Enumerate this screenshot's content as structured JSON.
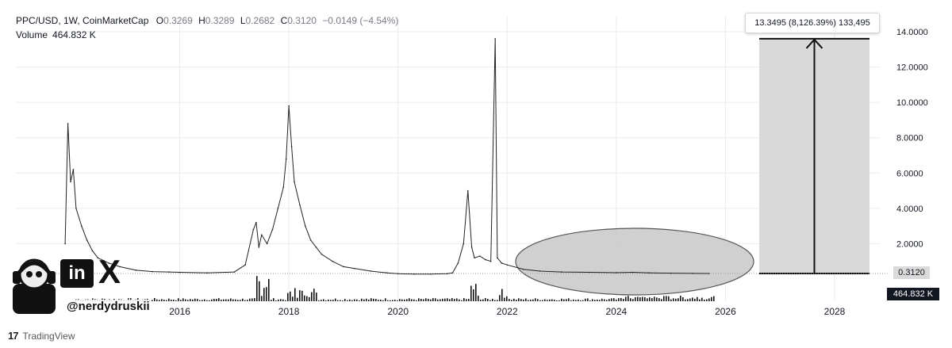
{
  "header": {
    "symbol_line": "PPC/USD, 1W, CoinMarketCap",
    "open_key": "O",
    "open": "0.3269",
    "high_key": "H",
    "high": "0.3289",
    "low_key": "L",
    "low": "0.2682",
    "close_key": "C",
    "close": "0.3120",
    "change": "−0.0149 (−4.54%)",
    "volume_label": "Volume",
    "volume_value": "464.832 K"
  },
  "price_tag": "0.3120",
  "volume_tag": "464.832 K",
  "measure": {
    "label": "13.3495 (8,126.39%) 133,495",
    "from": 0.312,
    "to": 13.6
  },
  "watermark": {
    "handle": "@nerdydruskii",
    "linkedin_text": "in",
    "x_text": "X"
  },
  "footer": {
    "logo": "17",
    "brand": "TradingView"
  },
  "colors": {
    "price_line": "#222222",
    "volume": "#111111",
    "measure_fill": "#d9d9d9",
    "ellipse_fill": "#c8c8c8",
    "grid": "#ebebeb"
  },
  "chart_data": {
    "type": "line",
    "title": "PPC/USD, 1W, CoinMarketCap",
    "x_ticks": [
      "2016",
      "2018",
      "2020",
      "2022",
      "2024",
      "2026",
      "2028"
    ],
    "y_ticks": [
      "2.0000",
      "4.0000",
      "6.0000",
      "8.0000",
      "10.0000",
      "12.0000",
      "14.0000"
    ],
    "ylim": [
      0,
      14
    ],
    "xlim": [
      2013.8,
      2029.5
    ],
    "series": [
      {
        "x": [
          2013.9,
          2013.95,
          2014.0,
          2014.05,
          2014.1,
          2014.2,
          2014.3,
          2014.4,
          2014.5,
          2014.7,
          2014.9,
          2015.2,
          2015.5,
          2015.8,
          2016.0,
          2016.5,
          2017.0,
          2017.2,
          2017.35,
          2017.4,
          2017.45,
          2017.5,
          2017.6,
          2017.7,
          2017.8,
          2017.9,
          2017.95,
          2018.0,
          2018.05,
          2018.1,
          2018.2,
          2018.3,
          2018.4,
          2018.5,
          2018.6,
          2018.8,
          2019.0,
          2019.2,
          2019.5,
          2019.8,
          2020.0,
          2020.3,
          2020.6,
          2020.9,
          2021.0,
          2021.1,
          2021.2,
          2021.28,
          2021.35,
          2021.4,
          2021.5,
          2021.6,
          2021.7,
          2021.78,
          2021.82,
          2021.9,
          2022.0,
          2022.3,
          2022.6,
          2023.0,
          2023.5,
          2024.0,
          2024.3,
          2024.6,
          2025.0,
          2025.4,
          2025.7
        ],
        "values": [
          2.0,
          8.8,
          5.5,
          6.2,
          4.0,
          3.0,
          2.2,
          1.6,
          1.2,
          0.9,
          0.7,
          0.5,
          0.42,
          0.4,
          0.38,
          0.35,
          0.4,
          0.8,
          2.8,
          3.2,
          1.8,
          2.5,
          2.0,
          2.8,
          4.0,
          5.2,
          6.8,
          9.8,
          7.5,
          5.5,
          4.2,
          3.0,
          2.2,
          1.8,
          1.4,
          1.0,
          0.7,
          0.6,
          0.45,
          0.35,
          0.3,
          0.28,
          0.28,
          0.3,
          0.35,
          0.9,
          2.0,
          5.0,
          1.8,
          1.2,
          1.3,
          1.1,
          1.0,
          13.6,
          1.2,
          0.9,
          0.8,
          0.55,
          0.45,
          0.4,
          0.38,
          0.36,
          0.38,
          0.35,
          0.33,
          0.32,
          0.312
        ]
      }
    ],
    "grid": true
  }
}
